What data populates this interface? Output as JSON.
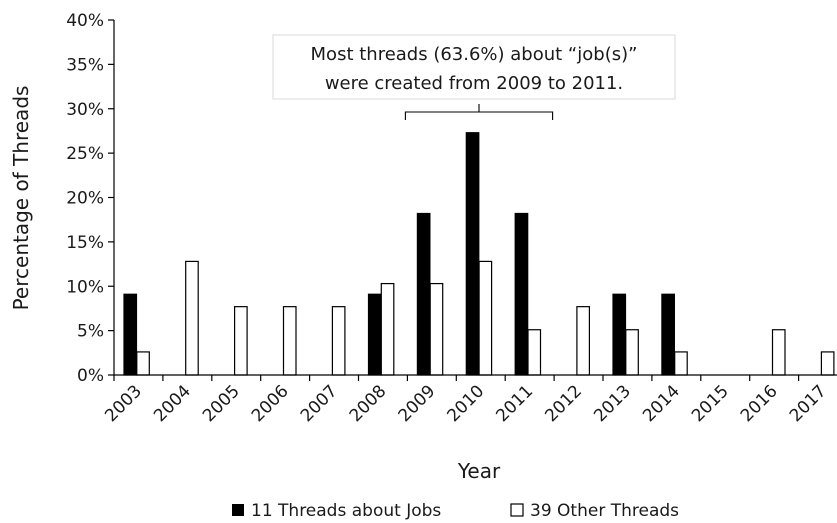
{
  "chart_data": {
    "type": "bar",
    "categories": [
      "2003",
      "2004",
      "2005",
      "2006",
      "2007",
      "2008",
      "2009",
      "2010",
      "2011",
      "2012",
      "2013",
      "2014",
      "2015",
      "2016",
      "2017"
    ],
    "series": [
      {
        "name": "11 Threads about Jobs",
        "color": "#000000",
        "fill": "solid",
        "values": [
          9.1,
          0,
          0,
          0,
          0,
          9.1,
          18.2,
          27.3,
          18.2,
          0,
          9.1,
          9.1,
          0,
          0,
          0
        ]
      },
      {
        "name": "39 Other Threads",
        "color": "#ffffff",
        "fill": "outline",
        "values": [
          2.6,
          12.8,
          7.7,
          7.7,
          7.7,
          10.3,
          10.3,
          12.8,
          5.1,
          7.7,
          5.1,
          2.6,
          0,
          5.1,
          2.6
        ]
      }
    ],
    "ylim": [
      0,
      40
    ],
    "yticks": [
      "0%",
      "5%",
      "10%",
      "15%",
      "20%",
      "25%",
      "30%",
      "35%",
      "40%"
    ],
    "xlabel": "Year",
    "ylabel": "Percentage of Threads",
    "grid": false,
    "legend_position": "bottom",
    "annotation": {
      "line1": "Most threads (63.6%) about “job(s)”",
      "line2": "were created from 2009 to 2011.",
      "bracket_from": "2009",
      "bracket_to": "2011"
    }
  }
}
